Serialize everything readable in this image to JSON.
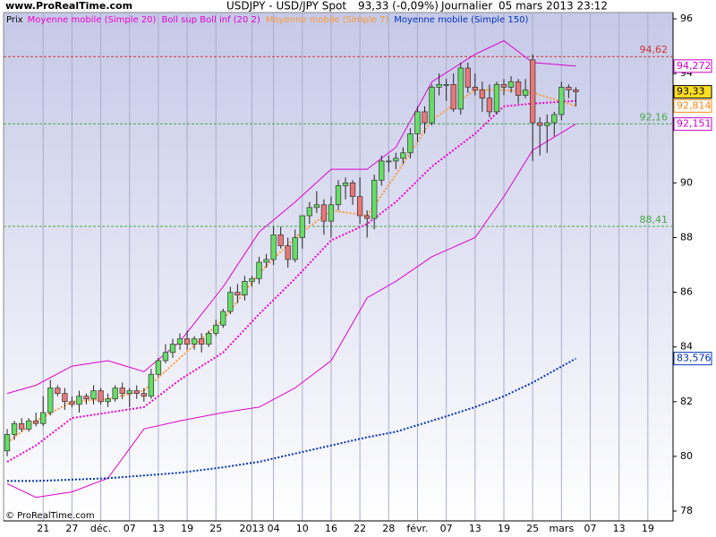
{
  "chart_data": {
    "type": "candlestick",
    "site": "www.ProRealTime.com",
    "title": "USDJPY - USD/JPY Spot",
    "last_price": "93,33 (-0,09%)",
    "period": "Journalier",
    "date": "05 mars 2013 23:12",
    "copyright": "© ProRealTime.com",
    "price_legend": "Prix",
    "categories": [
      null,
      null,
      null,
      null,
      null,
      "21",
      null,
      null,
      null,
      "27",
      null,
      null,
      null,
      "déc.",
      null,
      null,
      null,
      "07",
      null,
      null,
      null,
      "13",
      null,
      null,
      null,
      "19",
      null,
      null,
      null,
      "25",
      null,
      null,
      null,
      null,
      "2013",
      null,
      null,
      "04",
      null,
      null,
      null,
      "10",
      null,
      null,
      null,
      "16",
      null,
      null,
      null,
      "22",
      null,
      null,
      null,
      "28",
      null,
      null,
      null,
      "févr.",
      null,
      null,
      null,
      "07",
      null,
      null,
      null,
      "13",
      null,
      null,
      null,
      "19",
      null,
      null,
      null,
      "25",
      null,
      null,
      null,
      "mars",
      null,
      null,
      null,
      "07",
      null,
      null,
      null,
      "13",
      null,
      null,
      null,
      "19",
      null,
      null,
      null
    ],
    "open": [
      80.2,
      80.8,
      81.2,
      81.0,
      81.3,
      81.2,
      81.6,
      82.5,
      82.3,
      82.0,
      81.9,
      82.2,
      82.1,
      82.4,
      82.0,
      82.1,
      82.5,
      82.3,
      82.4,
      82.3,
      82.2,
      83.0,
      83.5,
      83.8,
      84.1,
      84.3,
      84.1,
      84.3,
      84.1,
      84.5,
      84.8,
      85.3,
      86.0,
      85.9,
      86.4,
      86.5,
      87.1,
      87.2,
      88.1,
      87.7,
      87.2,
      88.0,
      88.8,
      89.1,
      89.2,
      88.6,
      89.2,
      89.9,
      90.0,
      89.5,
      88.8,
      88.7,
      90.1,
      90.8,
      90.8,
      90.9,
      91.1,
      91.8,
      92.6,
      92.2,
      93.5,
      93.6,
      93.6,
      92.7,
      94.2,
      93.5,
      93.4,
      93.1,
      92.6,
      93.6,
      93.5,
      93.7,
      93.2,
      94.5,
      92.2,
      92.1,
      92.2,
      92.5,
      93.5,
      93.4,
      null,
      null,
      null,
      null,
      null,
      null,
      null,
      null,
      null,
      null,
      null,
      null,
      null
    ],
    "high": [
      81.0,
      81.3,
      81.4,
      81.4,
      81.6,
      82.2,
      82.8,
      82.6,
      82.5,
      82.2,
      82.4,
      82.3,
      82.6,
      82.5,
      82.3,
      82.6,
      82.7,
      82.5,
      82.6,
      82.5,
      83.2,
      83.6,
      84.1,
      84.3,
      84.5,
      84.6,
      84.4,
      84.5,
      84.6,
      85.0,
      85.4,
      86.2,
      86.3,
      86.6,
      86.6,
      87.3,
      87.4,
      88.4,
      88.4,
      88.0,
      88.3,
      88.8,
      89.3,
      89.7,
      89.4,
      89.5,
      90.1,
      90.2,
      90.1,
      90.2,
      89.0,
      90.3,
      91.0,
      91.0,
      91.1,
      91.3,
      92.0,
      92.8,
      92.8,
      93.6,
      94.0,
      93.8,
      94.0,
      94.4,
      94.4,
      94.0,
      93.7,
      93.6,
      93.7,
      93.8,
      93.9,
      93.8,
      93.8,
      94.7,
      92.4,
      92.5,
      92.6,
      93.7,
      93.6,
      93.5,
      null,
      null,
      null,
      null,
      null,
      null,
      null,
      null,
      null,
      null,
      null,
      null,
      null
    ],
    "low": [
      80.0,
      80.6,
      80.9,
      80.9,
      81.1,
      81.1,
      81.5,
      82.2,
      81.7,
      81.8,
      81.6,
      81.9,
      81.9,
      81.9,
      81.8,
      82.0,
      82.1,
      81.8,
      82.1,
      82.0,
      82.1,
      82.9,
      83.4,
      83.6,
      83.9,
      83.9,
      83.9,
      83.8,
      84.0,
      84.4,
      84.7,
      85.2,
      85.6,
      85.7,
      86.2,
      86.3,
      86.9,
      87.0,
      87.6,
      86.9,
      87.1,
      87.6,
      88.5,
      88.9,
      88.1,
      88.0,
      89.0,
      89.4,
      89.2,
      88.5,
      88.0,
      88.3,
      89.9,
      90.4,
      90.5,
      90.7,
      90.9,
      91.5,
      91.8,
      92.1,
      93.2,
      93.0,
      92.6,
      92.5,
      93.3,
      93.2,
      92.6,
      92.4,
      92.5,
      93.2,
      93.3,
      92.9,
      93.1,
      90.8,
      91.0,
      91.1,
      91.7,
      92.3,
      93.1,
      92.8,
      null,
      null,
      null,
      null,
      null,
      null,
      null,
      null,
      null,
      null,
      null,
      null,
      null
    ],
    "close": [
      80.8,
      81.2,
      81.0,
      81.3,
      81.2,
      81.6,
      82.5,
      82.3,
      82.0,
      81.9,
      82.2,
      82.1,
      82.4,
      82.0,
      82.1,
      82.5,
      82.3,
      82.4,
      82.3,
      82.2,
      83.0,
      83.5,
      83.8,
      84.1,
      84.3,
      84.1,
      84.3,
      84.1,
      84.5,
      84.8,
      85.3,
      86.0,
      85.9,
      86.4,
      86.5,
      87.1,
      87.2,
      88.1,
      87.7,
      87.2,
      88.0,
      88.8,
      89.1,
      89.2,
      88.6,
      89.2,
      89.9,
      90.0,
      89.5,
      88.8,
      88.7,
      90.1,
      90.8,
      90.8,
      90.9,
      91.1,
      91.8,
      92.6,
      92.2,
      93.5,
      93.6,
      93.6,
      92.7,
      94.2,
      93.5,
      93.4,
      93.1,
      92.6,
      93.6,
      93.5,
      93.7,
      93.2,
      93.4,
      92.2,
      92.1,
      92.2,
      92.5,
      93.5,
      93.4,
      93.33,
      null,
      null,
      null,
      null,
      null,
      null,
      null,
      null,
      null,
      null,
      null,
      null,
      null
    ],
    "up_color": "#66dd66",
    "down_color": "#e87878",
    "indicators": [
      {
        "name": "Moyenne mobile (Simple 20)",
        "color": "#ee00cc",
        "dotted": true,
        "lines": [
          {
            "x": [
              0,
              4,
              9,
              14,
              19,
              24,
              30,
              35,
              40,
              45,
              50,
              54,
              59,
              65,
              69,
              73,
              79
            ],
            "values": [
              79.8,
              80.4,
              81.4,
              81.6,
              81.8,
              82.8,
              83.8,
              85.2,
              86.5,
              87.9,
              88.5,
              89.3,
              90.6,
              91.8,
              92.8,
              92.9,
              93.0
            ]
          }
        ]
      },
      {
        "name": "Boll sup Boll inf (20 2)",
        "color": "#dd00cc",
        "dotted": false,
        "lines": [
          {
            "x": [
              0,
              4,
              9,
              14,
              19,
              24,
              30,
              35,
              40,
              45,
              50,
              54,
              59,
              65,
              69,
              73,
              79
            ],
            "values": [
              82.3,
              82.6,
              83.3,
              83.5,
              83.1,
              84.2,
              86.2,
              88.2,
              89.3,
              90.5,
              90.5,
              91.3,
              93.7,
              94.7,
              95.2,
              94.4,
              94.272
            ]
          },
          {
            "x": [
              0,
              4,
              9,
              14,
              19,
              24,
              30,
              35,
              40,
              45,
              50,
              54,
              59,
              65,
              69,
              73,
              79
            ],
            "values": [
              79.0,
              78.5,
              78.7,
              79.2,
              81.0,
              81.3,
              81.6,
              81.8,
              82.5,
              83.5,
              85.8,
              86.4,
              87.3,
              88.0,
              89.5,
              91.2,
              92.151
            ]
          }
        ]
      },
      {
        "name": "Moyenne mobile (Simple 7)",
        "color": "#ff9933",
        "dotted": true,
        "lines": [
          {
            "x": [
              0,
              4,
              9,
              14,
              19,
              24,
              30,
              35,
              40,
              45,
              50,
              54,
              59,
              65,
              69,
              73,
              79
            ],
            "values": [
              80.5,
              81.3,
              82.0,
              82.1,
              82.4,
              83.6,
              85.0,
              86.7,
              88.0,
              89.0,
              88.8,
              90.3,
              92.3,
              93.4,
              93.4,
              93.3,
              92.814
            ]
          }
        ]
      },
      {
        "name": "Moyenne mobile (Simple 150)",
        "color": "#0033bb",
        "dotted": true,
        "lines": [
          {
            "x": [
              0,
              4,
              9,
              14,
              19,
              24,
              30,
              35,
              40,
              45,
              50,
              54,
              59,
              65,
              69,
              73,
              79
            ],
            "values": [
              79.1,
              79.1,
              79.15,
              79.2,
              79.3,
              79.4,
              79.6,
              79.8,
              80.1,
              80.4,
              80.7,
              80.9,
              81.3,
              81.8,
              82.2,
              82.7,
              83.576
            ]
          }
        ]
      }
    ],
    "levels": [
      {
        "value": 94.62,
        "label": "94,62",
        "color": "#cc3333"
      },
      {
        "value": 92.16,
        "label": "92,16",
        "color": "#44aa44"
      },
      {
        "value": 88.41,
        "label": "88,41",
        "color": "#44aa44"
      }
    ],
    "last_values": [
      {
        "value": 94.272,
        "label": "94,272",
        "color": "#cc00cc",
        "fill": "#ffffff"
      },
      {
        "value": 93.33,
        "label": "93,33",
        "color": "#000000",
        "fill": "#ffdd22"
      },
      {
        "value": 92.814,
        "label": "92,814",
        "color": "#ff8811",
        "fill": "#ffffff"
      },
      {
        "value": 92.151,
        "label": "92,151",
        "color": "#cc00cc",
        "fill": "#ffffff"
      },
      {
        "value": 83.576,
        "label": "83,576",
        "color": "#0033bb",
        "fill": "#ffffff"
      }
    ],
    "ylim": [
      77.64,
      96.23
    ],
    "yticks": [
      78,
      80,
      82,
      84,
      86,
      88,
      90,
      92,
      94,
      96
    ],
    "grid": true
  }
}
